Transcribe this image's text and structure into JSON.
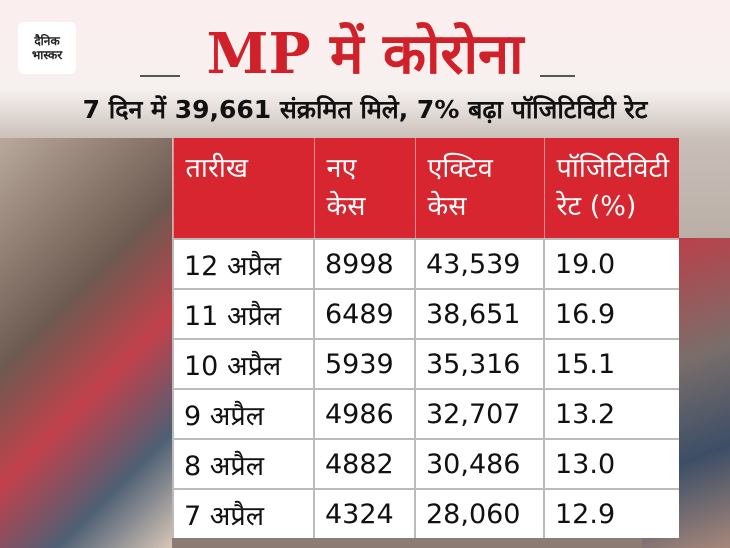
{
  "logo": {
    "lines": [
      "दैनिक",
      "भास्कर"
    ]
  },
  "header": {
    "title": "MP में कोरोना",
    "subtitle": "7 दिन में 39,661 संक्रमित मिले, 7% बढ़ा पॉजिटिविटी रेट"
  },
  "table": {
    "columns": [
      [
        "तारीख"
      ],
      [
        "नए",
        "केस"
      ],
      [
        "एक्टिव",
        "केस"
      ],
      [
        "पॉजिटिविटी",
        "रेट (%)"
      ]
    ],
    "rows": [
      [
        "12 अप्रैल",
        "8998",
        "43,539",
        "19.0"
      ],
      [
        "11 अप्रैल",
        "6489",
        "38,651",
        "16.9"
      ],
      [
        "10 अप्रैल",
        "5939",
        "35,316",
        "15.1"
      ],
      [
        "9 अप्रैल",
        "4986",
        "32,707",
        "13.2"
      ],
      [
        "8 अप्रैल",
        "4882",
        "30,486",
        "13.0"
      ],
      [
        "7 अप्रैल",
        "4324",
        "28,060",
        "12.9"
      ]
    ]
  }
}
